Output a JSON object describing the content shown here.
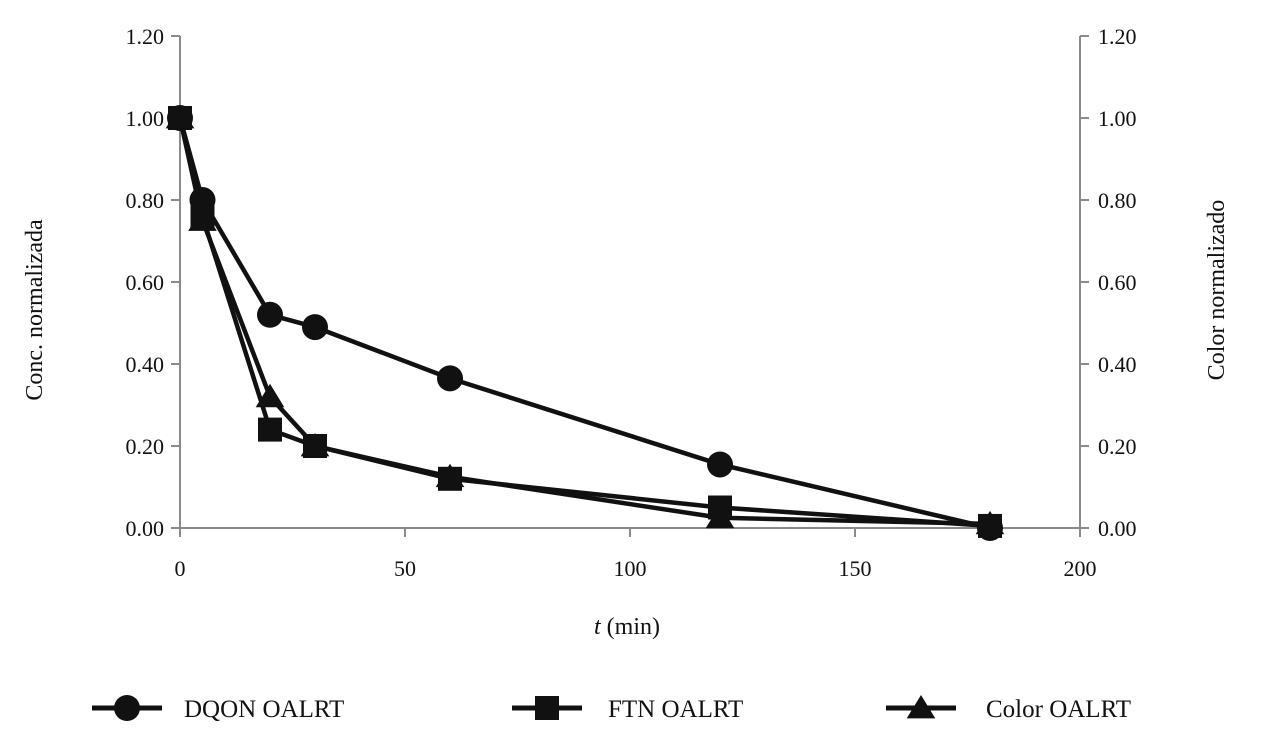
{
  "chart_data": {
    "type": "line",
    "title": "",
    "xlabel_italic": "t",
    "xlabel_rest": " (min)",
    "ylabel": "Conc. normalizada",
    "ylabel_right": "Color normalizado",
    "xlim": [
      0,
      200
    ],
    "ylim": [
      0,
      1.2
    ],
    "x_ticks": [
      "0",
      "50",
      "100",
      "150",
      "200"
    ],
    "y_ticks": [
      "0.00",
      "0.20",
      "0.40",
      "0.60",
      "0.80",
      "1.00",
      "1.20"
    ],
    "x_tick_values": [
      0,
      50,
      100,
      150,
      200
    ],
    "y_tick_values": [
      0,
      0.2,
      0.4,
      0.6,
      0.8,
      1.0,
      1.2
    ],
    "grid": false,
    "legend_position": "bottom",
    "series": [
      {
        "name": "DQON OALRT",
        "marker": "circle",
        "color": "#111111",
        "x": [
          0,
          5,
          20,
          30,
          60,
          120,
          180
        ],
        "y": [
          1.0,
          0.8,
          0.52,
          0.49,
          0.365,
          0.155,
          0.0
        ]
      },
      {
        "name": "FTN OALRT",
        "marker": "square",
        "color": "#111111",
        "x": [
          0,
          5,
          20,
          30,
          60,
          120,
          180
        ],
        "y": [
          1.0,
          0.76,
          0.24,
          0.2,
          0.12,
          0.05,
          0.005
        ]
      },
      {
        "name": "Color OALRT",
        "marker": "triangle",
        "color": "#111111",
        "x": [
          0,
          5,
          20,
          30,
          60,
          120,
          180
        ],
        "y": [
          1.0,
          0.75,
          0.32,
          0.2,
          0.125,
          0.025,
          0.01
        ]
      }
    ]
  }
}
